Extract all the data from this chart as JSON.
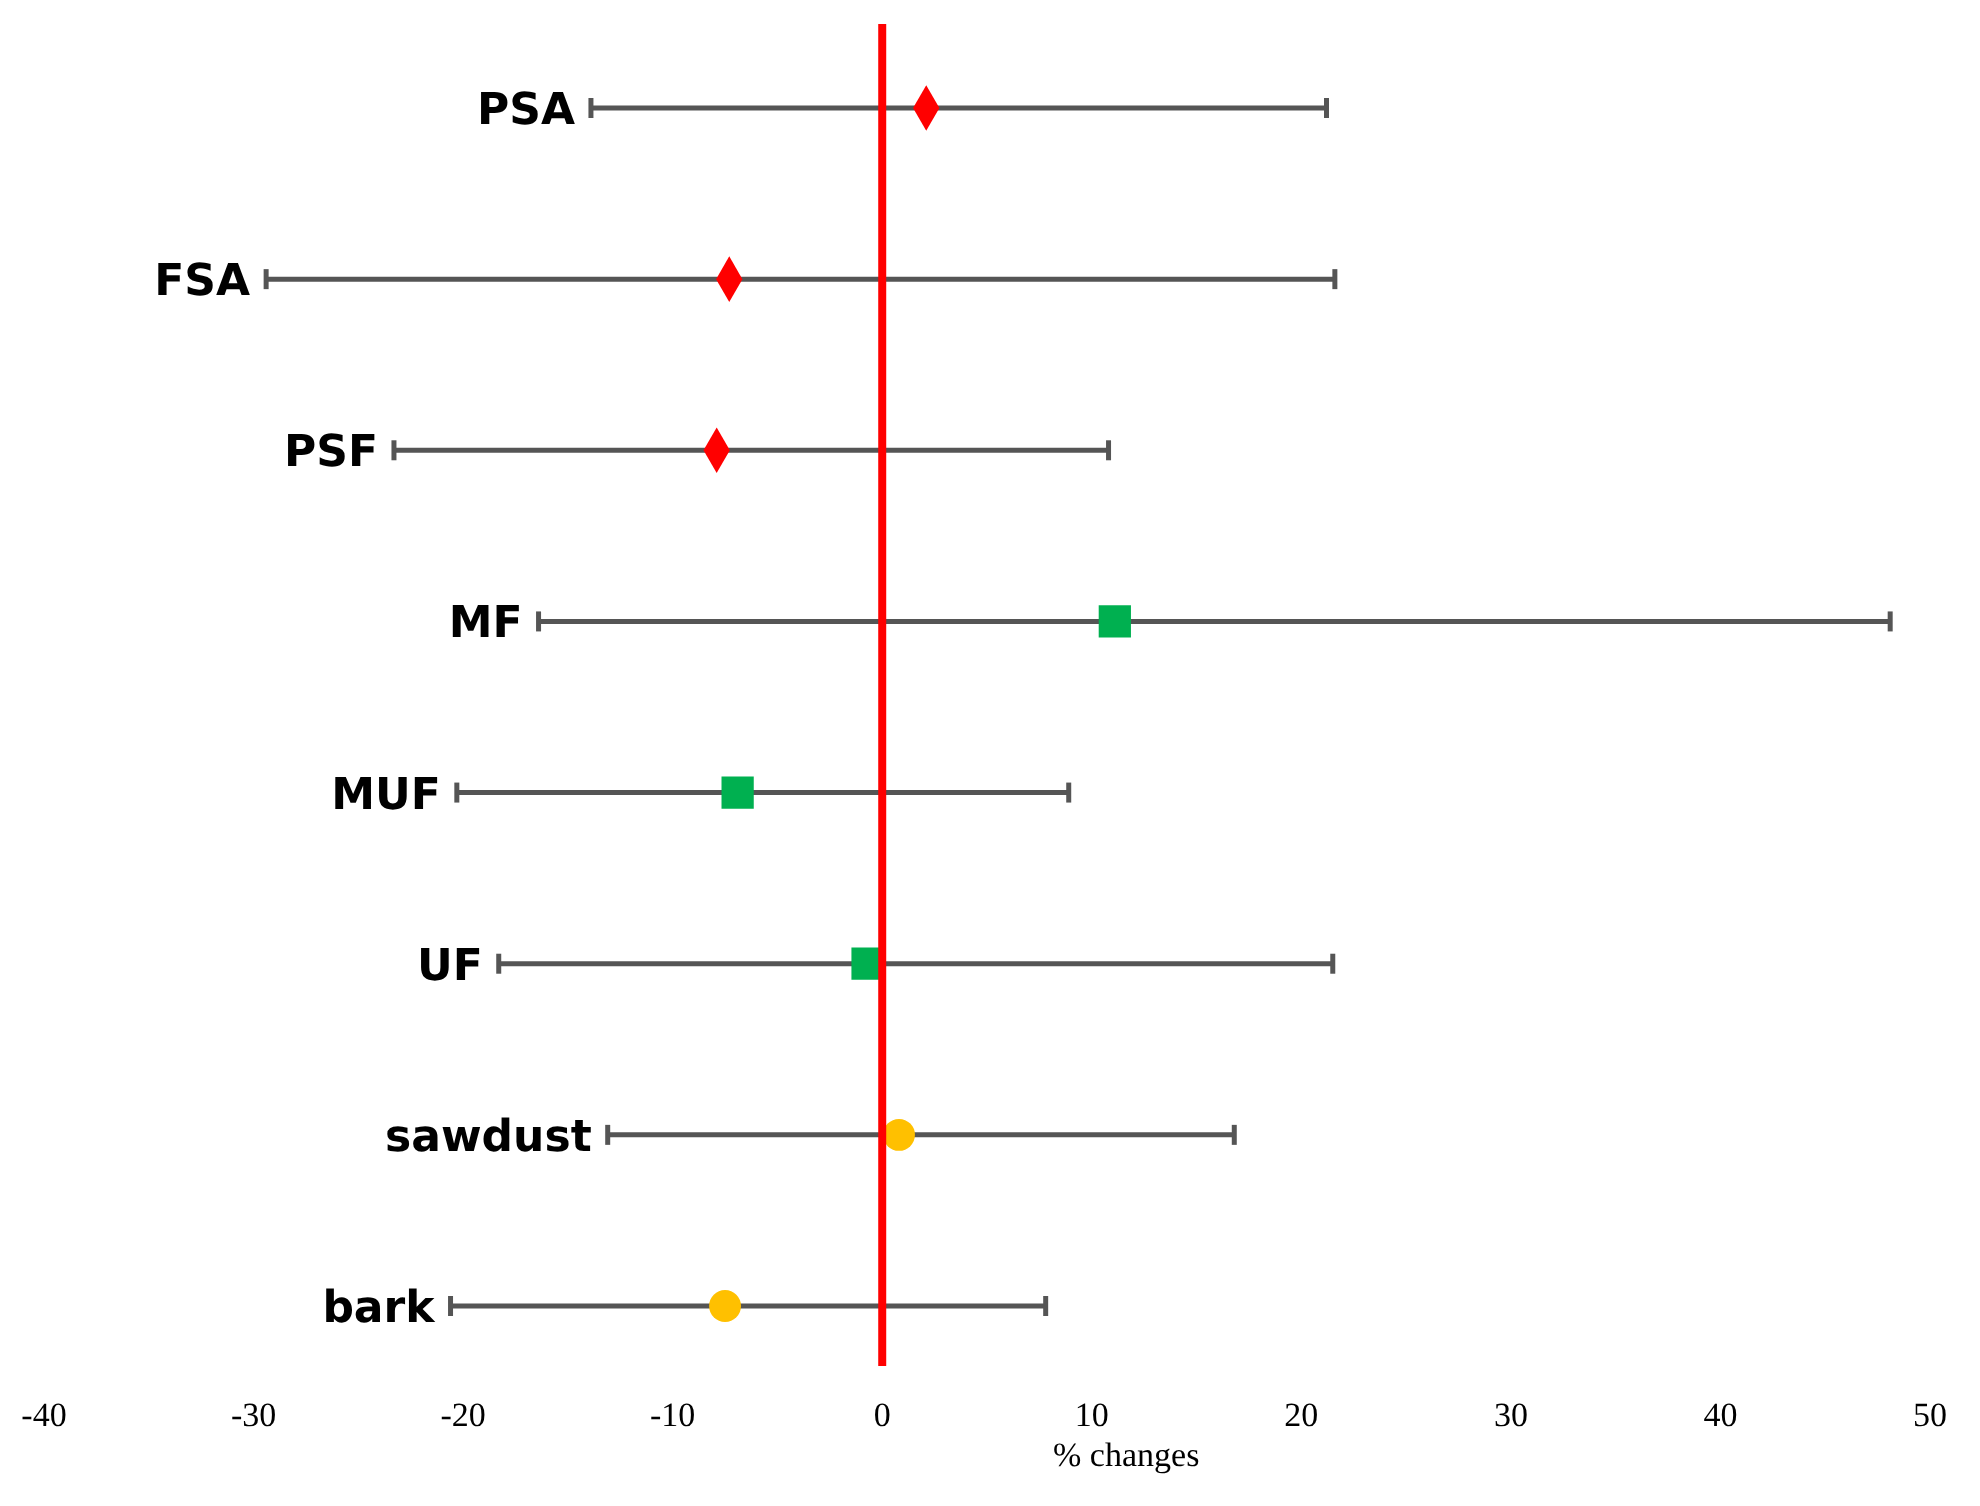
{
  "chart_data": {
    "type": "scatter",
    "orientation": "horizontal",
    "xlabel": "% changes",
    "categories": [
      "PSA",
      "FSA",
      "PSF",
      "MF",
      "MUF",
      "UF",
      "sawdust",
      "bark"
    ],
    "xlim": [
      -40,
      50
    ],
    "xticks": [
      -40,
      -30,
      -20,
      -10,
      0,
      10,
      20,
      30,
      40,
      50
    ],
    "series": [
      {
        "color": "#ff0000",
        "marker": "diamond",
        "values": [
          2.1,
          -7.3,
          -7.9,
          null,
          null,
          null,
          null,
          null
        ],
        "errors": [
          [
            -13.9,
            21.2
          ],
          [
            -29.4,
            21.6
          ],
          [
            -23.3,
            10.8
          ],
          null,
          null,
          null,
          null,
          null
        ]
      },
      {
        "color": "#00b050",
        "marker": "square",
        "values": [
          null,
          null,
          null,
          11.1,
          -6.9,
          -0.7,
          null,
          null
        ],
        "errors": [
          null,
          null,
          null,
          [
            -16.4,
            48.1
          ],
          [
            -20.3,
            8.9
          ],
          [
            -18.3,
            21.5
          ],
          null,
          null
        ]
      },
      {
        "color": "#ffc000",
        "marker": "circle",
        "values": [
          null,
          null,
          null,
          null,
          null,
          null,
          0.8,
          -7.5
        ],
        "errors": [
          null,
          null,
          null,
          null,
          null,
          null,
          [
            -13.1,
            16.8
          ],
          [
            -20.6,
            7.8
          ]
        ]
      }
    ],
    "ref_lines": [
      {
        "axis": "x",
        "value": 0,
        "color": "#ff0000"
      }
    ],
    "grid": false
  }
}
